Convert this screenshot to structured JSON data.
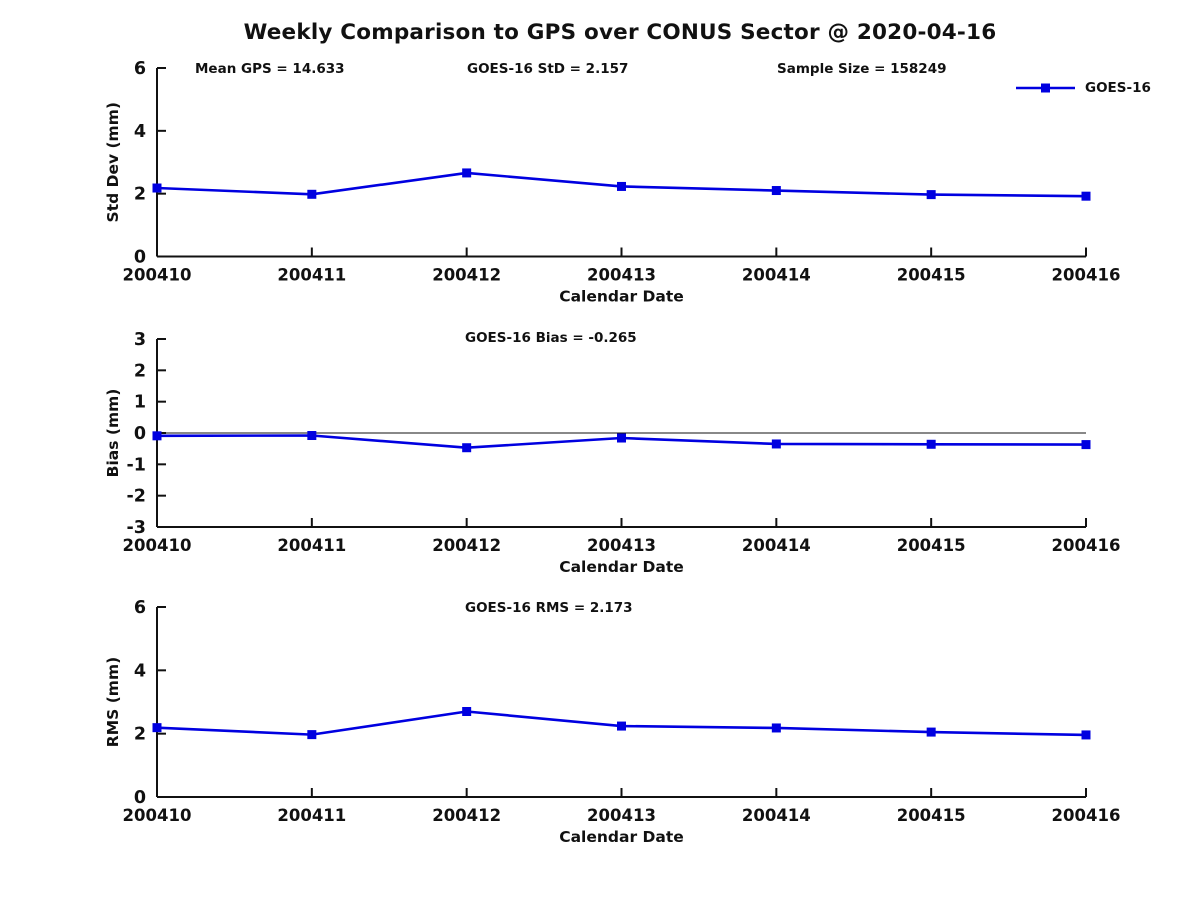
{
  "title": "Weekly Comparison to GPS over CONUS Sector @ 2020-04-16",
  "annotations": {
    "mean_gps": "Mean GPS = 14.633",
    "goes16_std": "GOES-16 StD = 2.157",
    "sample_size": "Sample Size = 158249",
    "goes16_bias": "GOES-16 Bias = -0.265",
    "goes16_rms": "GOES-16 RMS = 2.173"
  },
  "legend": {
    "label": "GOES-16",
    "position": "top-right",
    "marker": "filled-square",
    "line_color": "#0000e0"
  },
  "colors": {
    "line": "#0000e0",
    "axis": "#111111",
    "background": "#ffffff"
  },
  "chart_data": [
    {
      "type": "line",
      "subplot": "std-dev",
      "categories": [
        "200410",
        "200411",
        "200412",
        "200413",
        "200414",
        "200415",
        "200416"
      ],
      "series": [
        {
          "name": "GOES-16",
          "values": [
            2.18,
            1.98,
            2.66,
            2.23,
            2.1,
            1.97,
            1.92
          ]
        }
      ],
      "xlabel": "Calendar Date",
      "ylabel": "Std Dev (mm)",
      "ylim": [
        0,
        6
      ],
      "yticks": [
        0,
        2,
        4,
        6
      ],
      "zero_line": false,
      "grid": false,
      "legend_position": "top-right",
      "marker": "square"
    },
    {
      "type": "line",
      "subplot": "bias",
      "categories": [
        "200410",
        "200411",
        "200412",
        "200413",
        "200414",
        "200415",
        "200416"
      ],
      "series": [
        {
          "name": "GOES-16",
          "values": [
            -0.09,
            -0.08,
            -0.47,
            -0.16,
            -0.35,
            -0.36,
            -0.37
          ]
        }
      ],
      "xlabel": "Calendar Date",
      "ylabel": "Bias (mm)",
      "ylim": [
        -3,
        3
      ],
      "yticks": [
        -3,
        -2,
        -1,
        0,
        1,
        2,
        3
      ],
      "zero_line": true,
      "grid": false,
      "legend_position": "none",
      "marker": "square"
    },
    {
      "type": "line",
      "subplot": "rms",
      "categories": [
        "200410",
        "200411",
        "200412",
        "200413",
        "200414",
        "200415",
        "200416"
      ],
      "series": [
        {
          "name": "GOES-16",
          "values": [
            2.19,
            1.97,
            2.7,
            2.24,
            2.18,
            2.05,
            1.96
          ]
        }
      ],
      "xlabel": "Calendar Date",
      "ylabel": "RMS (mm)",
      "ylim": [
        0,
        6
      ],
      "yticks": [
        0,
        2,
        4,
        6
      ],
      "zero_line": false,
      "grid": false,
      "legend_position": "none",
      "marker": "square"
    }
  ]
}
